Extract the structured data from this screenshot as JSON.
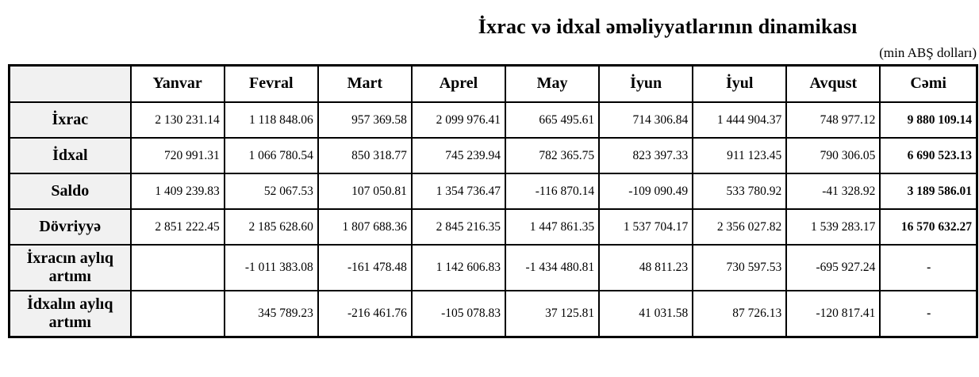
{
  "page": {
    "title": "İxrac və idxal əməliyyatlarının dinamikası",
    "unit_note": "(min ABŞ dolları)"
  },
  "colors": {
    "row_header_bg": "#f1f1f1",
    "border": "#000000",
    "text": "#000000",
    "background": "#ffffff"
  },
  "table": {
    "columns": [
      "",
      "Yanvar",
      "Fevral",
      "Mart",
      "Aprel",
      "May",
      "İyun",
      "İyul",
      "Avqust",
      "Cəmi"
    ],
    "rows": [
      {
        "label": "İxrac",
        "values": [
          "2 130 231.14",
          "1 118 848.06",
          "957 369.58",
          "2 099 976.41",
          "665 495.61",
          "714 306.84",
          "1 444 904.37",
          "748 977.12",
          "9 880 109.14"
        ]
      },
      {
        "label": "İdxal",
        "values": [
          "720 991.31",
          "1 066 780.54",
          "850 318.77",
          "745 239.94",
          "782 365.75",
          "823 397.33",
          "911 123.45",
          "790 306.05",
          "6 690 523.13"
        ]
      },
      {
        "label": "Saldo",
        "values": [
          "1 409 239.83",
          "52 067.53",
          "107 050.81",
          "1 354 736.47",
          "-116 870.14",
          "-109 090.49",
          "533 780.92",
          "-41 328.92",
          "3 189 586.01"
        ]
      },
      {
        "label": "Dövriyyə",
        "values": [
          "2 851 222.45",
          "2 185 628.60",
          "1 807 688.36",
          "2 845 216.35",
          "1 447 861.35",
          "1 537 704.17",
          "2 356 027.82",
          "1 539 283.17",
          "16 570 632.27"
        ]
      },
      {
        "label": "İxracın aylıq artımı",
        "values": [
          "",
          "-1 011 383.08",
          "-161 478.48",
          "1 142 606.83",
          "-1 434 480.81",
          "48 811.23",
          "730 597.53",
          "-695 927.24",
          "-"
        ]
      },
      {
        "label": "İdxalın aylıq artımı",
        "values": [
          "",
          "345 789.23",
          "-216 461.76",
          "-105 078.83",
          "37 125.81",
          "41 031.58",
          "87 726.13",
          "-120 817.41",
          "-"
        ]
      }
    ]
  }
}
